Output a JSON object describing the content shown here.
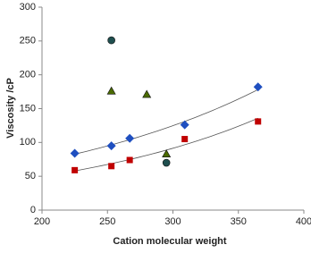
{
  "chart_data": {
    "type": "scatter",
    "x_label": "Cation molecular weight",
    "y_label": "Viscosity /cP",
    "xlim": [
      200,
      400
    ],
    "xticks": [
      200,
      250,
      300,
      350,
      400
    ],
    "ylim": [
      0,
      300
    ],
    "yticks": [
      0,
      50,
      100,
      150,
      200,
      250,
      300
    ],
    "series": [
      {
        "color": "#1f4fc0",
        "marker": "diamond",
        "trendline": "exponential",
        "x": [
          225,
          253,
          267,
          309,
          365
        ],
        "values": [
          84,
          95,
          106,
          126,
          182
        ]
      },
      {
        "color": "#c00000",
        "marker": "square",
        "trendline": "exponential",
        "x": [
          225,
          253,
          267,
          309,
          365
        ],
        "values": [
          59,
          65,
          74,
          105,
          131
        ]
      },
      {
        "color": "#4a6a00",
        "marker": "triangle",
        "x": [
          253,
          280,
          295
        ],
        "values": [
          176,
          171,
          83
        ]
      },
      {
        "color": "#1f4f4f",
        "marker": "circle",
        "x": [
          253,
          295
        ],
        "values": [
          251,
          70
        ]
      }
    ]
  }
}
